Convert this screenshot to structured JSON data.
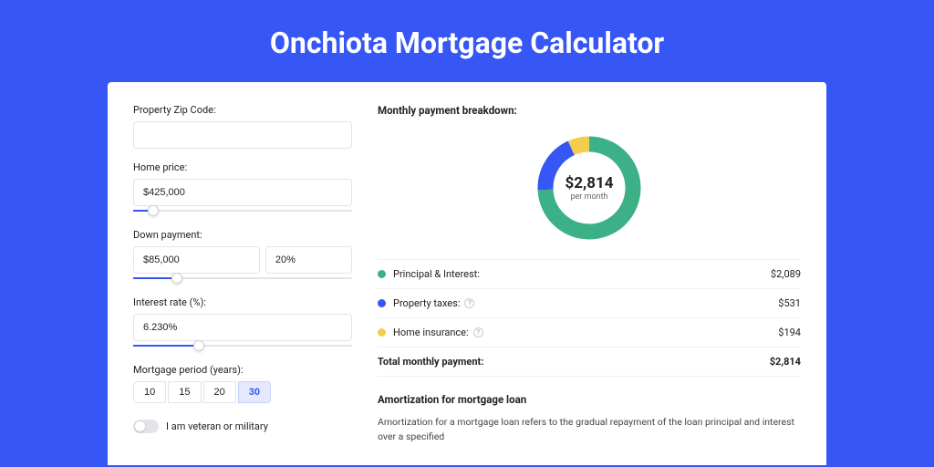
{
  "title": "Onchiota Mortgage Calculator",
  "colors": {
    "brand": "#3656f5",
    "principal": "#3cb087",
    "taxes": "#3656f5",
    "insurance": "#f3ce4e"
  },
  "form": {
    "zip": {
      "label": "Property Zip Code:",
      "value": ""
    },
    "home_price": {
      "label": "Home price:",
      "value": "$425,000",
      "slider_pct": 9
    },
    "down_payment": {
      "label": "Down payment:",
      "value": "$85,000",
      "pct_value": "20%",
      "slider_pct": 20
    },
    "interest": {
      "label": "Interest rate (%):",
      "value": "6.230%",
      "slider_pct": 30
    },
    "period": {
      "label": "Mortgage period (years):",
      "options": [
        "10",
        "15",
        "20",
        "30"
      ],
      "active_index": 3
    },
    "veteran": {
      "label": "I am veteran or military",
      "checked": false
    }
  },
  "breakdown": {
    "title": "Monthly payment breakdown:",
    "total_display": "$2,814",
    "per_month": "per month",
    "items": [
      {
        "label": "Principal & Interest:",
        "value": "$2,089",
        "pct": 74.2,
        "color": "#3cb087",
        "help": false
      },
      {
        "label": "Property taxes:",
        "value": "$531",
        "pct": 18.9,
        "color": "#3656f5",
        "help": true
      },
      {
        "label": "Home insurance:",
        "value": "$194",
        "pct": 6.9,
        "color": "#f3ce4e",
        "help": true
      }
    ],
    "total_row": {
      "label": "Total monthly payment:",
      "value": "$2,814"
    }
  },
  "amortization": {
    "title": "Amortization for mortgage loan",
    "text": "Amortization for a mortgage loan refers to the gradual repayment of the loan principal and interest over a specified"
  }
}
